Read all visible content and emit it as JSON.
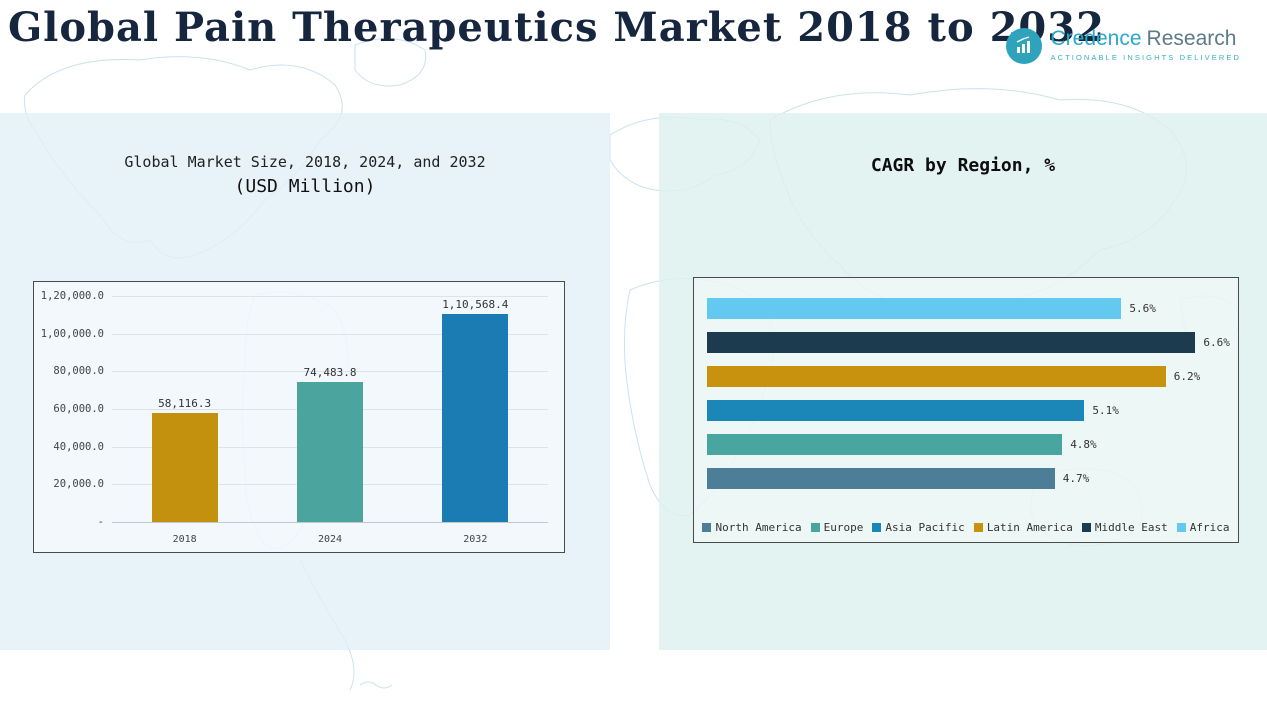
{
  "header": {
    "title": "Global Pain Therapeutics Market 2018 to 2032",
    "logo": {
      "brand_primary": "Credence",
      "brand_secondary": "Research",
      "tagline": "Actionable Insights Delivered",
      "accent_color": "#2FA3BC"
    }
  },
  "chart_data": [
    {
      "type": "bar",
      "title": "Global Market Size, 2018, 2024, and 2032",
      "subtitle": "(USD Million)",
      "categories": [
        "2018",
        "2024",
        "2032"
      ],
      "values": [
        58116.3,
        74483.8,
        110568.4
      ],
      "value_labels": [
        "58,116.3",
        "74,483.8",
        "1,10,568.4"
      ],
      "bar_colors": [
        "#C3910E",
        "#4BA49D",
        "#1A7CB2"
      ],
      "ylim": [
        0,
        120000
      ],
      "ytick_labels": [
        "1,20,000.0",
        "1,00,000.0",
        "80,000.0",
        "60,000.0",
        "40,000.0",
        "20,000.0",
        "-"
      ],
      "grid": true,
      "legend_position": "none"
    },
    {
      "type": "bar-horizontal",
      "title": "CAGR by Region, %",
      "categories": [
        "Africa",
        "Middle East",
        "Latin America",
        "Asia Pacific",
        "Europe",
        "North America"
      ],
      "values": [
        5.6,
        6.6,
        6.2,
        5.1,
        4.8,
        4.7
      ],
      "value_labels": [
        "5.6%",
        "6.6%",
        "6.2%",
        "5.1%",
        "4.8%",
        "4.7%"
      ],
      "bar_colors": [
        "#63C9F0",
        "#1D3B4E",
        "#C8920F",
        "#1B86B8",
        "#48A5A0",
        "#4C7E97"
      ],
      "xlim": [
        0,
        7
      ],
      "grid": false,
      "legend_position": "bottom",
      "legend": [
        {
          "label": "North America",
          "color": "#4C7E97"
        },
        {
          "label": "Europe",
          "color": "#48A5A0"
        },
        {
          "label": "Asia Pacific",
          "color": "#1B86B8"
        },
        {
          "label": "Latin America",
          "color": "#C8920F"
        },
        {
          "label": "Middle East",
          "color": "#1D3B4E"
        },
        {
          "label": "Africa",
          "color": "#63C9F0"
        }
      ]
    }
  ]
}
